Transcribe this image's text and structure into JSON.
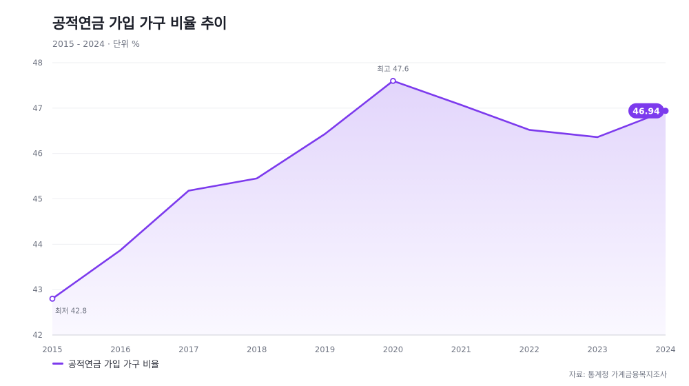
{
  "chart_data": {
    "type": "area",
    "title": "공적연금 가입 가구 비율 추이",
    "subtitle": "2015 - 2024 · 단위 %",
    "x": [
      "2015",
      "2016",
      "2017",
      "2018",
      "2019",
      "2020",
      "2021",
      "2022",
      "2023",
      "2024"
    ],
    "series": [
      {
        "name": "공적연금 가입 가구 비율",
        "values": [
          42.8,
          43.87,
          45.18,
          45.45,
          46.43,
          47.6,
          47.07,
          46.52,
          46.36,
          46.94
        ]
      }
    ],
    "ylim": [
      42,
      48
    ],
    "yticks": [
      "42",
      "43",
      "44",
      "45",
      "46",
      "47",
      "48"
    ],
    "grid": true,
    "legend_position": "bottom-left",
    "annotations": {
      "max": {
        "label": "최고 47.6",
        "index": 5
      },
      "min": {
        "label": "최저 42.8",
        "index": 0
      },
      "last": {
        "label": "46.94",
        "index": 9
      }
    },
    "colors": {
      "line": "#7c3aed",
      "fill_top": "#e3d7fb",
      "fill_bottom": "#ffffff",
      "grid": "#eeeff2",
      "tick_text": "#6f7482"
    }
  },
  "source": "자료: 통계청 가계금융복지조사"
}
